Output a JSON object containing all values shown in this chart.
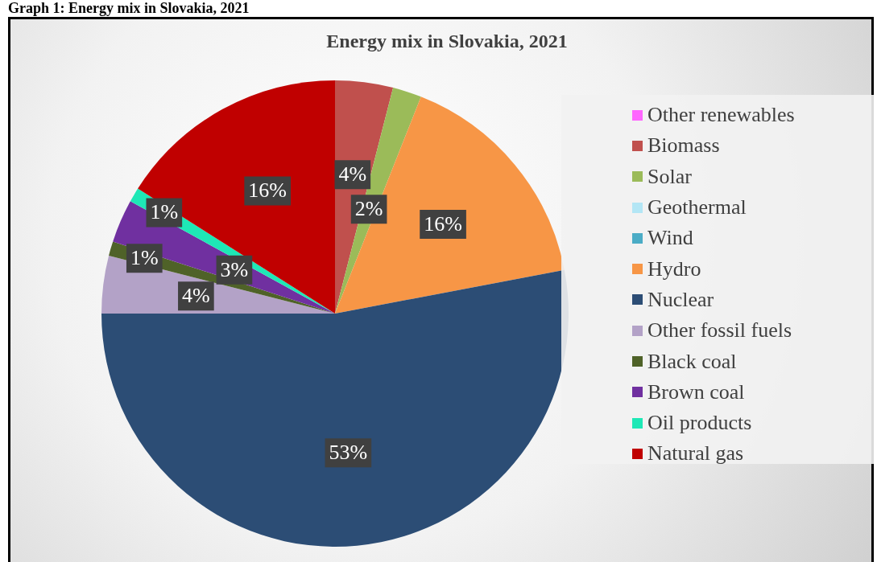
{
  "chart_data": {
    "type": "pie",
    "title": "Energy mix in Slovakia, 2021",
    "annotations": [
      "Graph 1: Energy mix in Slovakia, 2021"
    ],
    "categories": [
      "Other renewables",
      "Biomass",
      "Solar",
      "Geothermal",
      "Wind",
      "Hydro",
      "Nuclear",
      "Other fossil fuels",
      "Black coal",
      "Brown coal",
      "Oil products",
      "Natural gas"
    ],
    "values": [
      0,
      4,
      2,
      0,
      0,
      16,
      53,
      4,
      1,
      3,
      1,
      16
    ],
    "value_labels": [
      null,
      "4%",
      "2%",
      null,
      null,
      "16%",
      "53%",
      "4%",
      "1%",
      "3%",
      "1%",
      "16%"
    ],
    "colors": [
      "#ff66ff",
      "#c0504d",
      "#9bbb59",
      "#b3e6f5",
      "#4bacc6",
      "#f79646",
      "#2c4d75",
      "#b3a2c7",
      "#4f6228",
      "#7030a0",
      "#1ee8b6",
      "#c00000"
    ],
    "legend": "right"
  }
}
